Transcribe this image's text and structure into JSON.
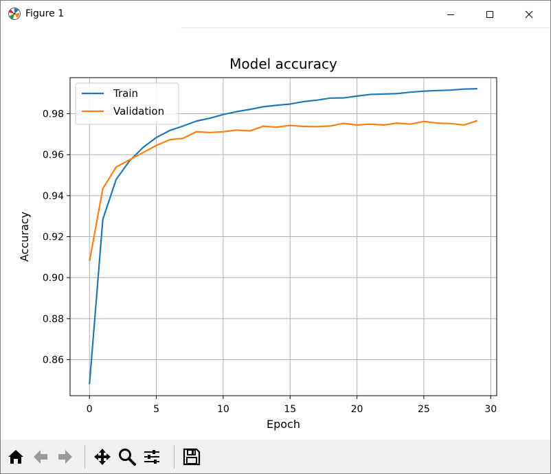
{
  "window": {
    "title": "Figure 1",
    "icons": {
      "app": "matplotlib-icon",
      "minimize": "minimize-icon",
      "maximize": "maximize-icon",
      "close": "close-icon"
    }
  },
  "toolbar": {
    "buttons": [
      {
        "name": "home-icon",
        "enabled": true
      },
      {
        "name": "back-arrow-icon",
        "enabled": false
      },
      {
        "name": "forward-arrow-icon",
        "enabled": false
      },
      {
        "name": "pan-icon",
        "enabled": true
      },
      {
        "name": "zoom-icon",
        "enabled": true
      },
      {
        "name": "subplots-config-icon",
        "enabled": true
      },
      {
        "name": "save-icon",
        "enabled": true
      }
    ]
  },
  "chart_data": {
    "type": "line",
    "title": "Model accuracy",
    "xlabel": "Epoch",
    "ylabel": "Accuracy",
    "xlim": [
      -1.45,
      30.45
    ],
    "ylim": [
      0.8424,
      0.9976
    ],
    "xticks": [
      0,
      5,
      10,
      15,
      20,
      25,
      30
    ],
    "yticks": [
      0.86,
      0.88,
      0.9,
      0.92,
      0.94,
      0.96,
      0.98
    ],
    "ytick_labels": [
      "0.86",
      "0.88",
      "0.90",
      "0.92",
      "0.94",
      "0.96",
      "0.98"
    ],
    "grid": true,
    "legend": "upper left",
    "x": [
      0,
      1,
      2,
      3,
      4,
      5,
      6,
      7,
      8,
      9,
      10,
      11,
      12,
      13,
      14,
      15,
      16,
      17,
      18,
      19,
      20,
      21,
      22,
      23,
      24,
      25,
      26,
      27,
      28,
      29
    ],
    "series": [
      {
        "name": "Train",
        "color": "#1f77b4",
        "values": [
          0.848,
          0.9285,
          0.948,
          0.957,
          0.9635,
          0.9684,
          0.9718,
          0.974,
          0.9764,
          0.9778,
          0.9796,
          0.981,
          0.9821,
          0.9834,
          0.9841,
          0.9847,
          0.9859,
          0.9866,
          0.9876,
          0.9877,
          0.9886,
          0.9894,
          0.9896,
          0.9898,
          0.9905,
          0.991,
          0.9913,
          0.9915,
          0.992,
          0.9922
        ]
      },
      {
        "name": "Validation",
        "color": "#ff7f0e",
        "values": [
          0.908,
          0.9435,
          0.954,
          0.9575,
          0.961,
          0.9645,
          0.9673,
          0.968,
          0.9712,
          0.9708,
          0.9712,
          0.972,
          0.9716,
          0.9739,
          0.9734,
          0.9743,
          0.9738,
          0.9737,
          0.974,
          0.9753,
          0.9745,
          0.9749,
          0.9745,
          0.9754,
          0.9749,
          0.9762,
          0.9754,
          0.9752,
          0.9745,
          0.9766
        ]
      }
    ]
  }
}
